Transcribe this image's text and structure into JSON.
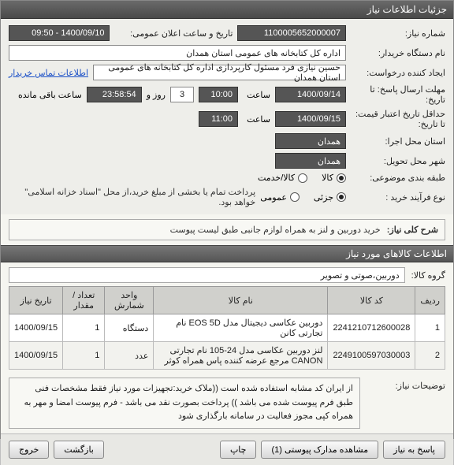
{
  "title": "جزئیات اطلاعات نیاز",
  "fields": {
    "need_no_label": "شماره نیاز:",
    "need_no": "1100005652000007",
    "announce_label": "تاریخ و ساعت اعلان عمومی:",
    "announce_value": "1400/09/10 - 09:50",
    "buyer_org_label": "نام دستگاه خریدار:",
    "buyer_org": "اداره کل کتابخانه های عمومی استان همدان",
    "requester_label": "ایجاد کننده درخواست:",
    "requester": "حسین نیازی فرد مسئول کارپردازی اداره کل کتابخانه های عمومی استان همدان",
    "contact_link": "اطلاعات تماس خریدار",
    "deadline_reply_label": "مهلت ارسال پاسخ: تا تاریخ:",
    "deadline_reply_date": "1400/09/14",
    "time_label": "ساعت",
    "deadline_reply_time": "10:00",
    "days_label": "روز و",
    "days_value": "3",
    "countdown": "23:58:54",
    "remaining_label": "ساعت باقی مانده",
    "credit_deadline_label": "حداقل تاریخ اعتبار قیمت: تا تاریخ:",
    "credit_deadline_date": "1400/09/15",
    "credit_deadline_time": "11:00",
    "exec_city_label": "استان محل اجرا:",
    "exec_city": "همدان",
    "deliver_city_label": "شهر محل تحویل:",
    "deliver_city": "همدان",
    "category_label": "طبقه بندی موضوعی:",
    "cat_goods": "کالا",
    "cat_service": "کالا/خدمت",
    "buy_type_label": "نوع فرآیند خرید :",
    "buy_partial": "جزئی",
    "buy_full": "عمومی",
    "buy_note": "پرداخت تمام یا بخشی از مبلغ خرید،از محل \"اسناد خزانه اسلامی\" خواهد بود.",
    "summary_label": "شرح کلی نیاز:",
    "summary_text": "خرید دوربین و لنز به همراه لوازم جانبی طبق لیست پیوست",
    "items_header": "اطلاعات کالاهای مورد نیاز",
    "group_label": "گروه کالا:",
    "group_value": "دوربین،صوتی و تصویر",
    "desc_label": "توضیحات نیاز:",
    "desc_text": "از ایران کد مشابه استفاده شده است ((ملاک خرید:تجهیزات مورد نیاز فقط مشخصات فنی طبق فرم پیوست شده می باشد )) پرداخت بصورت نقد می باشد - فرم پیوست امضا و مهر به همراه کپی مجوز فعالیت در سامانه بارگذاری شود"
  },
  "table": {
    "cols": [
      "ردیف",
      "کد کالا",
      "نام کالا",
      "واحد شمارش",
      "تعداد / مقدار",
      "تاریخ نیاز"
    ],
    "rows": [
      [
        "1",
        "2241210712600028",
        "دوربین عکاسی دیجیتال مدل EOS 5D نام تجارتی کانن",
        "دستگاه",
        "1",
        "1400/09/15"
      ],
      [
        "2",
        "2249100597030003",
        "لنز دوربین عکاسی مدل 24-105 نام تجارتی CANON مرجع عرضه کننده پاس همراه کوثر",
        "عدد",
        "1",
        "1400/09/15"
      ]
    ]
  },
  "buttons": {
    "respond": "پاسخ به نیاز",
    "docs": "مشاهده مدارک پیوستی (1)",
    "print": "چاپ",
    "back": "بازگشت",
    "exit": "خروج"
  }
}
